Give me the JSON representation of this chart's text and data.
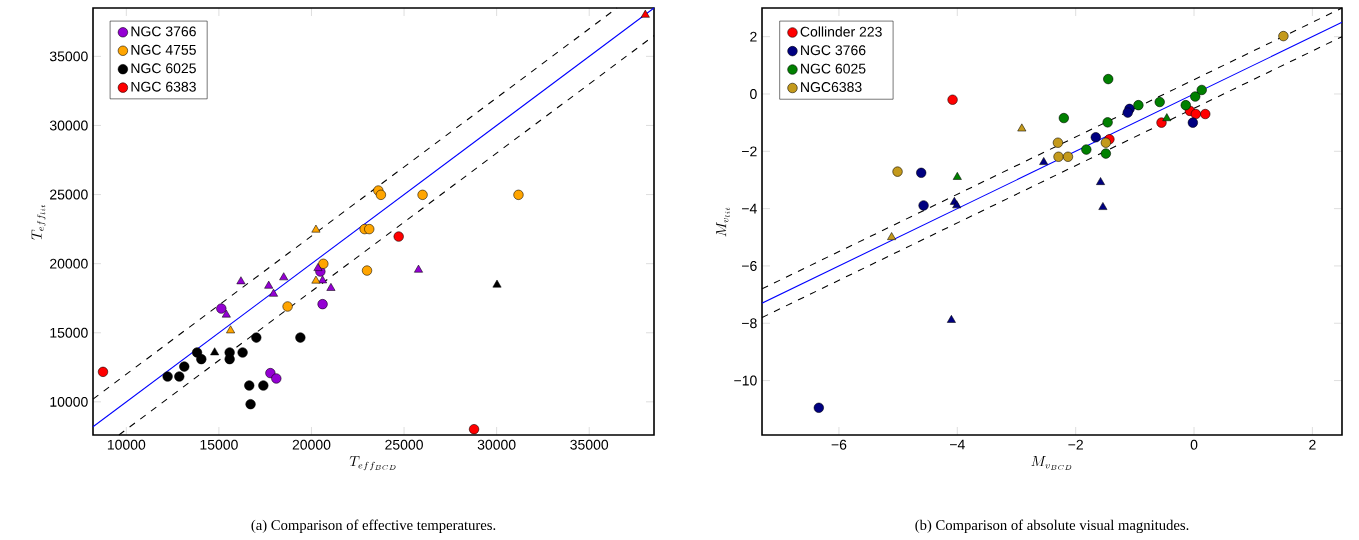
{
  "chart_data": [
    {
      "type": "scatter",
      "xlabel": "T_{eff_{BCD}}",
      "ylabel": "T_{eff_{lit}}",
      "annotations": [
        "(a)  Comparison of effective temperatures."
      ],
      "xlim": [
        8200,
        38500
      ],
      "ylim": [
        7600,
        38500
      ],
      "xticks": [
        10000,
        15000,
        20000,
        25000,
        30000,
        35000
      ],
      "yticks": [
        10000,
        15000,
        20000,
        25000,
        30000,
        35000
      ],
      "legend": "top left",
      "series": [
        {
          "type": "line",
          "color": "#000000",
          "line_style": "dashed",
          "x": [
            8200,
            36500
          ],
          "values": [
            10200,
            38500
          ]
        },
        {
          "type": "line",
          "color": "#000000",
          "line_style": "dashed",
          "x": [
            9600,
            38500
          ],
          "values": [
            7600,
            36500
          ]
        },
        {
          "type": "line",
          "color": "#0000ff",
          "line_style": "solid",
          "x": [
            8200,
            38500
          ],
          "values": [
            8200,
            38500
          ]
        },
        {
          "name": "NGC 3766",
          "color": "#9400d3",
          "marker": "circle",
          "x": [
            15130,
            20600,
            17780,
            18100,
            20480
          ],
          "values": [
            16750,
            17070,
            12080,
            11690,
            19430
          ]
        },
        {
          "name": "NGC 4755",
          "color": "#ffa500",
          "marker": "circle",
          "x": [
            18710,
            20640,
            22870,
            23120,
            23000,
            23610,
            23750,
            26000,
            31180
          ],
          "values": [
            16900,
            19990,
            22500,
            22500,
            19500,
            25290,
            24980,
            24980,
            24980
          ]
        },
        {
          "name": "NGC 6025",
          "color": "#000000",
          "marker": "circle",
          "x": [
            12230,
            12860,
            13130,
            13820,
            14050,
            15580,
            15580,
            16280,
            17020,
            16640,
            17400,
            16710,
            19400
          ],
          "values": [
            11830,
            11830,
            12550,
            13570,
            13090,
            13570,
            13090,
            13570,
            14650,
            11180,
            11180,
            9830,
            14650
          ]
        },
        {
          "name": "NGC 6383",
          "color": "#ff0000",
          "marker": "circle",
          "x": [
            8740,
            24710,
            28780
          ],
          "values": [
            12170,
            21960,
            8020
          ]
        },
        {
          "color": "#9400d3",
          "marker": "triangle",
          "x": [
            16190,
            15400,
            17690,
            17950,
            18500,
            20350,
            20600,
            21050,
            25780
          ],
          "values": [
            18710,
            16300,
            18390,
            17810,
            19000,
            19670,
            18780,
            18230,
            19550
          ]
        },
        {
          "color": "#ffa500",
          "marker": "triangle",
          "x": [
            20240,
            20240,
            15630
          ],
          "values": [
            22450,
            18760,
            15160
          ]
        },
        {
          "color": "#000000",
          "marker": "triangle",
          "x": [
            14770,
            30020
          ],
          "values": [
            13570,
            18470
          ]
        },
        {
          "color": "#ff0000",
          "marker": "triangle",
          "x": [
            38030
          ],
          "values": [
            38000
          ]
        }
      ]
    },
    {
      "type": "scatter",
      "xlabel": "M_{v_{BCD}}",
      "ylabel": "M_{v_{lit}}",
      "annotations": [
        "(b)  Comparison of absolute visual magnitudes."
      ],
      "xlim": [
        -7.3,
        2.5
      ],
      "ylim": [
        -11.9,
        3
      ],
      "xticks": [
        {
          "value": -6,
          "label": "−6"
        },
        {
          "value": -4,
          "label": "−4"
        },
        {
          "value": -2,
          "label": "−2"
        },
        0,
        2
      ],
      "yticks": [
        {
          "value": -10,
          "label": "−10"
        },
        {
          "value": -8,
          "label": "−8"
        },
        {
          "value": -6,
          "label": "−6"
        },
        {
          "value": -4,
          "label": "−4"
        },
        {
          "value": -2,
          "label": "−2"
        },
        0,
        2
      ],
      "legend": "top left",
      "series": [
        {
          "type": "line",
          "color": "#000000",
          "line_style": "dashed",
          "x": [
            -7.3,
            2.5
          ],
          "values": [
            -6.8,
            3.0
          ]
        },
        {
          "type": "line",
          "color": "#000000",
          "line_style": "dashed",
          "x": [
            -7.3,
            2.5
          ],
          "values": [
            -7.8,
            2.0
          ]
        },
        {
          "type": "line",
          "color": "#0000ff",
          "line_style": "solid",
          "x": [
            -7.3,
            2.5
          ],
          "values": [
            -7.3,
            2.5
          ]
        },
        {
          "name": "Collinder 223",
          "color": "#ff0000",
          "marker": "circle",
          "x": [
            -4.08,
            -1.43,
            -0.55,
            -0.07,
            0.03,
            0.19
          ],
          "values": [
            -0.2,
            -1.58,
            -1.0,
            -0.59,
            -0.7,
            -0.7
          ]
        },
        {
          "name": "NGC 3766",
          "color": "#000080",
          "marker": "circle",
          "x": [
            -6.34,
            -4.61,
            -4.57,
            -1.66,
            -1.09,
            -1.12,
            -0.02
          ],
          "values": [
            -10.95,
            -2.75,
            -3.89,
            -1.51,
            -0.52,
            -0.65,
            -1.0
          ]
        },
        {
          "name": "NGC 6025",
          "color": "#008000",
          "marker": "circle",
          "x": [
            -2.2,
            -1.45,
            -1.46,
            -1.82,
            -1.49,
            -0.94,
            -0.58,
            -0.14,
            0.02,
            0.13
          ],
          "values": [
            -0.84,
            0.52,
            -0.99,
            -1.94,
            -2.08,
            -0.39,
            -0.28,
            -0.39,
            -0.09,
            0.14
          ]
        },
        {
          "name": "NGC6383",
          "color": "#c49a1c",
          "marker": "circle",
          "x": [
            -5.01,
            -2.3,
            -2.29,
            -2.13,
            -1.49,
            1.51
          ],
          "values": [
            -2.71,
            -1.7,
            -2.19,
            -2.19,
            -1.7,
            2.02
          ]
        },
        {
          "color": "#000080",
          "marker": "triangle",
          "x": [
            -4.1,
            -4.05,
            -4.01,
            -2.54,
            -1.58,
            -1.54
          ],
          "values": [
            -7.89,
            -3.77,
            -3.89,
            -2.38,
            -3.08,
            -3.95
          ]
        },
        {
          "color": "#008000",
          "marker": "triangle",
          "x": [
            -4.0,
            -0.46
          ],
          "values": [
            -2.9,
            -0.85
          ]
        },
        {
          "color": "#c49a1c",
          "marker": "triangle",
          "x": [
            -5.11,
            -2.91
          ],
          "values": [
            -5.0,
            -1.21
          ]
        }
      ]
    }
  ]
}
